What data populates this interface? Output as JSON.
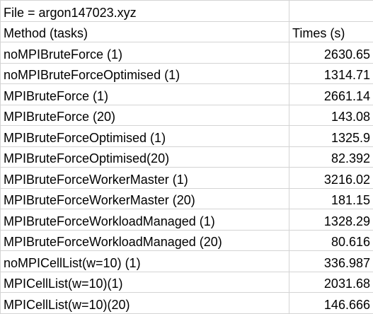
{
  "file_label": "File = argon147023.xyz",
  "headers": {
    "method": "Method (tasks)",
    "time": "Times (s)"
  },
  "rows": [
    {
      "method": "noMPIBruteForce (1)",
      "time": "2630.65"
    },
    {
      "method": "noMPIBruteForceOptimised (1)",
      "time": "1314.71"
    },
    {
      "method": "MPIBruteForce (1)",
      "time": "2661.14"
    },
    {
      "method": "MPIBruteForce (20)",
      "time": "143.08"
    },
    {
      "method": "MPIBruteForceOptimised (1)",
      "time": "1325.9"
    },
    {
      "method": "MPIBruteForceOptimised(20)",
      "time": "82.392"
    },
    {
      "method": "MPIBruteForceWorkerMaster (1)",
      "time": "3216.02"
    },
    {
      "method": "MPIBruteForceWorkerMaster (20)",
      "time": "181.15"
    },
    {
      "method": "MPIBruteForceWorkloadManaged (1)",
      "time": "1328.29"
    },
    {
      "method": "MPIBruteForceWorkloadManaged (20)",
      "time": "80.616"
    },
    {
      "method": "noMPICellList(w=10) (1)",
      "time": "336.987"
    },
    {
      "method": "MPICellList(w=10)(1)",
      "time": "2031.68"
    },
    {
      "method": "MPICellList(w=10)(20)",
      "time": "146.666"
    }
  ]
}
